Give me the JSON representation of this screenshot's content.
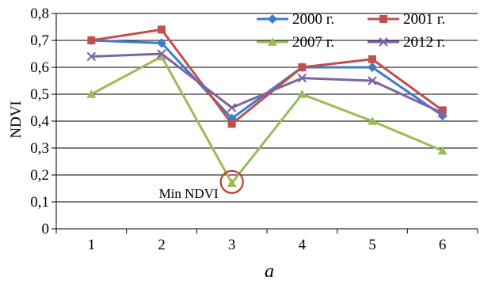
{
  "chart_data": {
    "type": "line",
    "title": "",
    "xlabel": "",
    "ylabel": "NDVI",
    "caption": "a",
    "categories": [
      "1",
      "2",
      "3",
      "4",
      "5",
      "6"
    ],
    "ylim": [
      0,
      0.8
    ],
    "yticks": [
      "0",
      "0,1",
      "0,2",
      "0,3",
      "0,4",
      "0,5",
      "0,6",
      "0,7",
      "0,8"
    ],
    "grid": true,
    "legend_position": "top-right",
    "series": [
      {
        "name": "2000 г.",
        "color": "#3d7cc9",
        "marker": "diamond",
        "values": [
          0.7,
          0.69,
          0.41,
          0.6,
          0.6,
          0.42
        ]
      },
      {
        "name": "2001 г.",
        "color": "#c0504d",
        "marker": "square",
        "values": [
          0.7,
          0.74,
          0.39,
          0.6,
          0.63,
          0.44
        ]
      },
      {
        "name": "2007 г.",
        "color": "#9bbb59",
        "marker": "triangle",
        "values": [
          0.5,
          0.64,
          0.17,
          0.5,
          0.4,
          0.29
        ]
      },
      {
        "name": "2012 г.",
        "color": "#8064a2",
        "marker": "cross",
        "values": [
          0.64,
          0.65,
          0.45,
          0.56,
          0.55,
          0.43
        ]
      }
    ],
    "annotation": {
      "text": "Min NDVI",
      "category": "3",
      "value": 0.18,
      "color": "#c0392b"
    }
  }
}
